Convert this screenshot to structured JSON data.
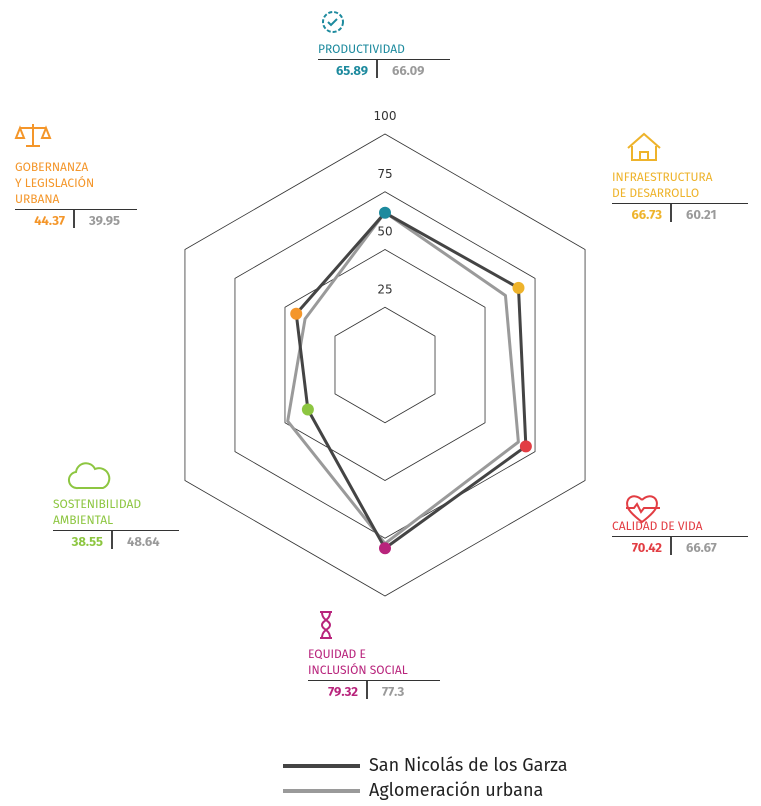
{
  "chart_data": {
    "type": "radar",
    "categories": [
      "PRODUCTIVIDAD",
      "INFRAESTRUCTURA\nDE DESARROLLO",
      "CALIDAD DE VIDA",
      "EQUIDAD E\nINCLUSIÓN SOCIAL",
      "SOSTENIBILIDAD\nAMBIENTAL",
      "GOBERNANZA\nY LEGISLACIÓN\nURBANA"
    ],
    "category_colors": [
      "#1d8a9e",
      "#eeb32b",
      "#e23d43",
      "#b8247c",
      "#8dc641",
      "#f4962a"
    ],
    "series": [
      {
        "name": "San Nicolás de los Garza",
        "color": "#444444",
        "values": [
          65.89,
          66.73,
          70.42,
          79.32,
          38.55,
          44.37
        ]
      },
      {
        "name": "Aglomeración urbana",
        "color": "#9a9a9a",
        "values": [
          66.09,
          60.21,
          66.67,
          77.3,
          48.64,
          39.95
        ]
      }
    ],
    "rlim": [
      0,
      100
    ],
    "rticks": [
      25,
      50,
      75,
      100
    ]
  }
}
